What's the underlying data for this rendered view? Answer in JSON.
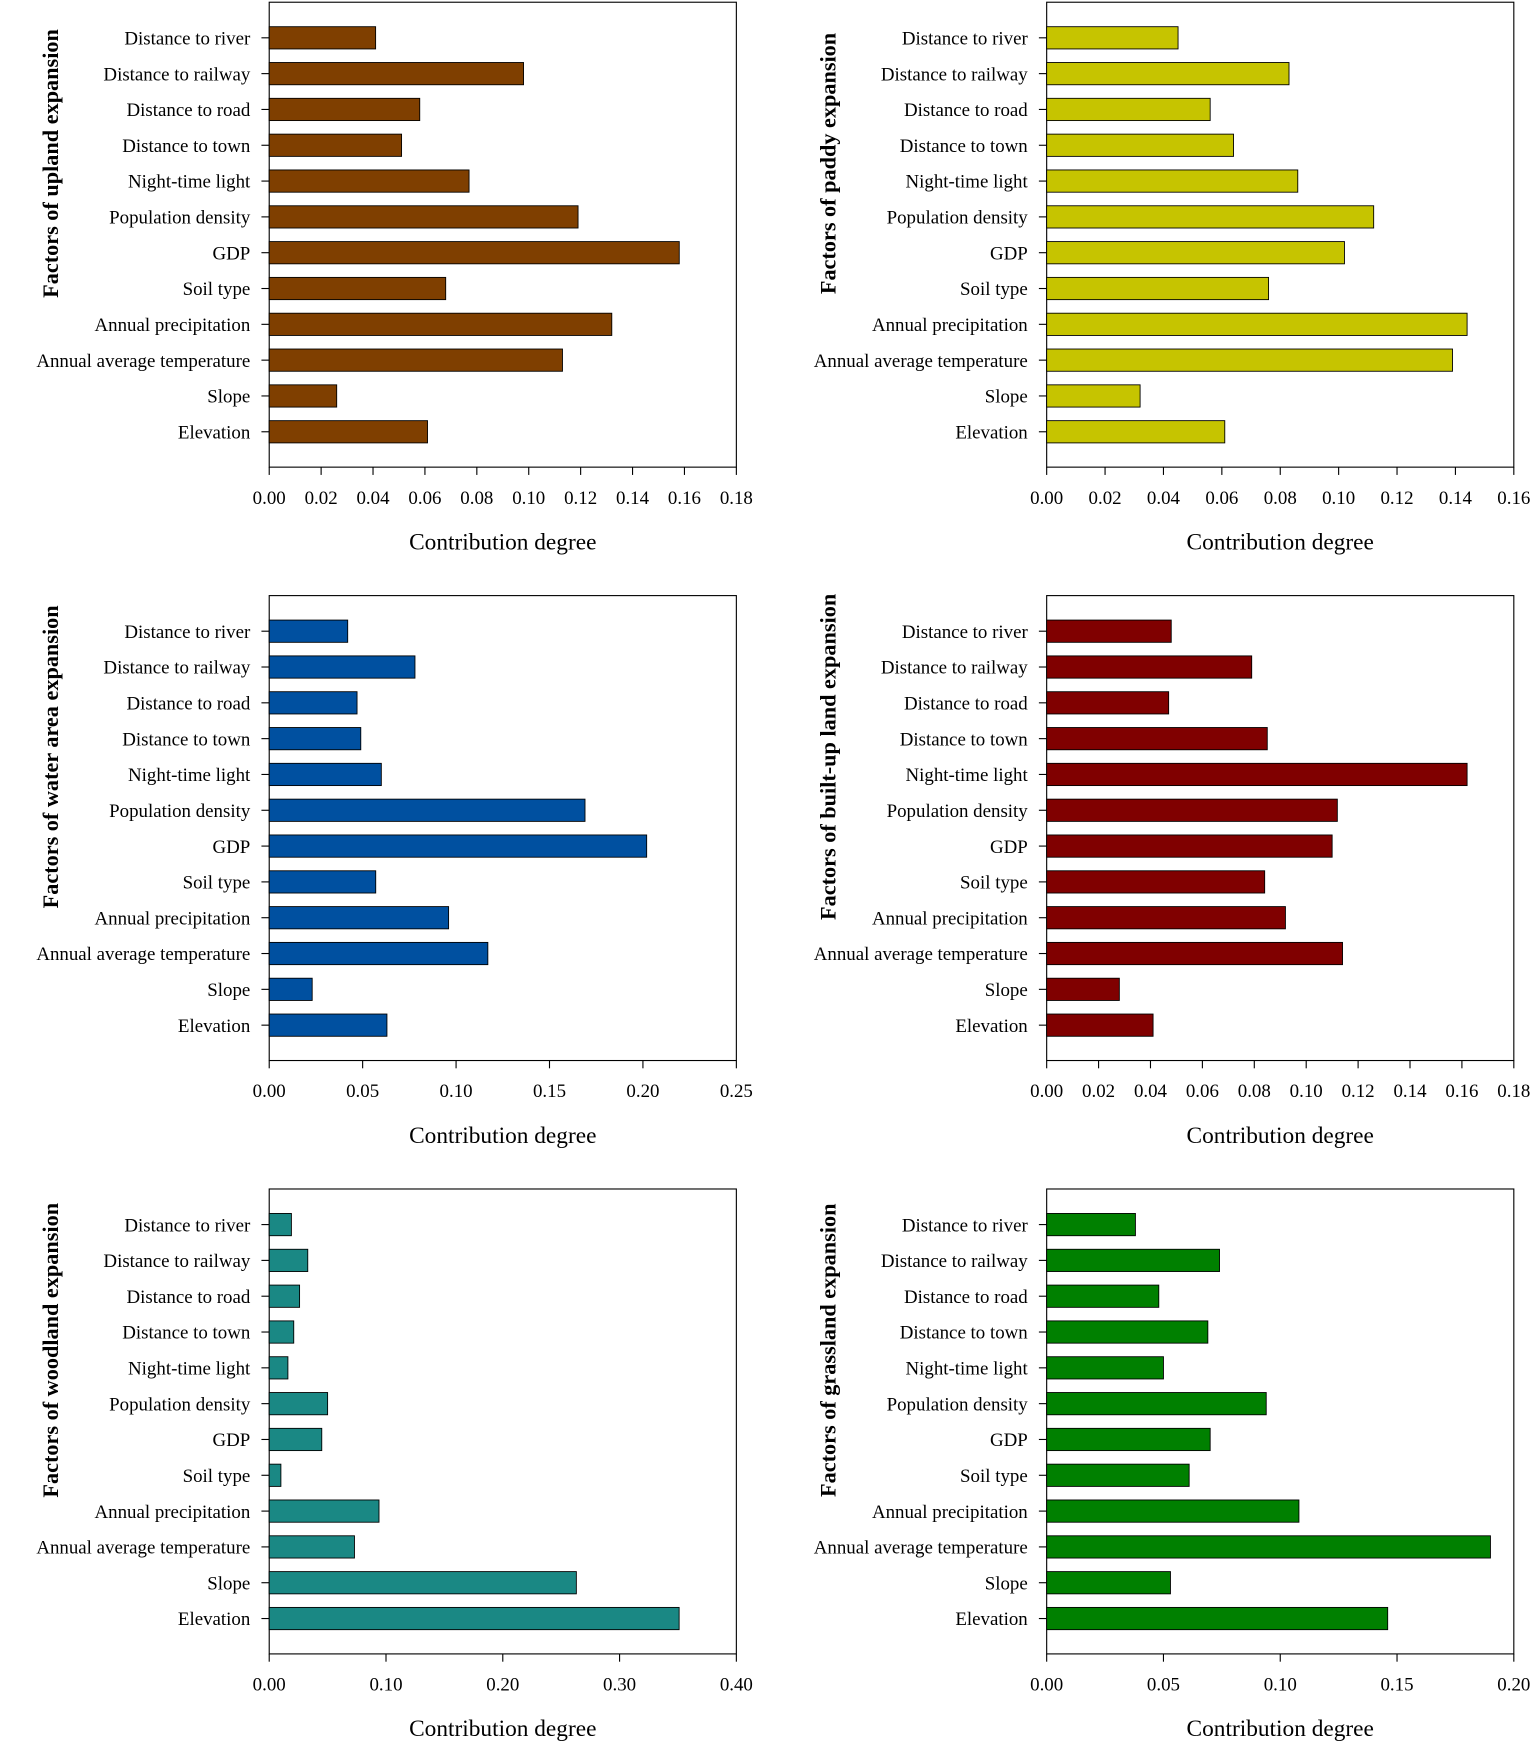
{
  "chart_data": [
    {
      "type": "bar",
      "orientation": "horizontal",
      "ylabel": "Factors of upland expansion",
      "xlabel": "Contribution degree",
      "color": "#7f3f00",
      "categories": [
        "Distance to river",
        "Distance to railway",
        "Distance to road",
        "Distance to town",
        "Night-time light",
        "Population density",
        "GDP",
        "Soil type",
        "Annual precipitation",
        "Annual average temperature",
        "Slope",
        "Elevation"
      ],
      "values": [
        0.041,
        0.098,
        0.058,
        0.051,
        0.077,
        0.119,
        0.158,
        0.068,
        0.132,
        0.113,
        0.026,
        0.061
      ],
      "xlim": [
        0,
        0.18
      ],
      "xticks": [
        "0.00",
        "0.02",
        "0.04",
        "0.06",
        "0.08",
        "0.10",
        "0.12",
        "0.14",
        "0.16",
        "0.18"
      ]
    },
    {
      "type": "bar",
      "orientation": "horizontal",
      "ylabel": "Factors of paddy expansion",
      "xlabel": "Contribution degree",
      "color": "#c6c400",
      "categories": [
        "Distance to river",
        "Distance to railway",
        "Distance to road",
        "Distance to town",
        "Night-time light",
        "Population density",
        "GDP",
        "Soil type",
        "Annual precipitation",
        "Annual average temperature",
        "Slope",
        "Elevation"
      ],
      "values": [
        0.045,
        0.083,
        0.056,
        0.064,
        0.086,
        0.112,
        0.102,
        0.076,
        0.144,
        0.139,
        0.032,
        0.061
      ],
      "xlim": [
        0,
        0.16
      ],
      "xticks": [
        "0.00",
        "0.02",
        "0.04",
        "0.06",
        "0.08",
        "0.10",
        "0.12",
        "0.14",
        "0.16"
      ]
    },
    {
      "type": "bar",
      "orientation": "horizontal",
      "ylabel": "Factors of water area expansion",
      "xlabel": "Contribution degree",
      "color": "#0050a0",
      "categories": [
        "Distance to river",
        "Distance to railway",
        "Distance to road",
        "Distance to town",
        "Night-time light",
        "Population density",
        "GDP",
        "Soil type",
        "Annual precipitation",
        "Annual average temperature",
        "Slope",
        "Elevation"
      ],
      "values": [
        0.042,
        0.078,
        0.047,
        0.049,
        0.06,
        0.169,
        0.202,
        0.057,
        0.096,
        0.117,
        0.023,
        0.063
      ],
      "xlim": [
        0,
        0.25
      ],
      "xticks": [
        "0.00",
        "0.05",
        "0.10",
        "0.15",
        "0.20",
        "0.25"
      ]
    },
    {
      "type": "bar",
      "orientation": "horizontal",
      "ylabel": "Factors of built-up land expansion",
      "xlabel": "Contribution degree",
      "color": "#800000",
      "categories": [
        "Distance to river",
        "Distance to railway",
        "Distance to road",
        "Distance to town",
        "Night-time light",
        "Population density",
        "GDP",
        "Soil type",
        "Annual precipitation",
        "Annual average temperature",
        "Slope",
        "Elevation"
      ],
      "values": [
        0.048,
        0.079,
        0.047,
        0.085,
        0.162,
        0.112,
        0.11,
        0.084,
        0.092,
        0.114,
        0.028,
        0.041
      ],
      "xlim": [
        0,
        0.18
      ],
      "xticks": [
        "0.00",
        "0.02",
        "0.04",
        "0.06",
        "0.08",
        "0.10",
        "0.12",
        "0.14",
        "0.16",
        "0.18"
      ]
    },
    {
      "type": "bar",
      "orientation": "horizontal",
      "ylabel": "Factors of woodland expansion",
      "xlabel": "Contribution degree",
      "color": "#1a8884",
      "categories": [
        "Distance to river",
        "Distance to railway",
        "Distance to road",
        "Distance to town",
        "Night-time light",
        "Population density",
        "GDP",
        "Soil type",
        "Annual precipitation",
        "Annual average temperature",
        "Slope",
        "Elevation"
      ],
      "values": [
        0.019,
        0.033,
        0.026,
        0.021,
        0.016,
        0.05,
        0.045,
        0.01,
        0.094,
        0.073,
        0.263,
        0.351
      ],
      "xlim": [
        0,
        0.4
      ],
      "xticks": [
        "0.00",
        "0.10",
        "0.20",
        "0.30",
        "0.40"
      ]
    },
    {
      "type": "bar",
      "orientation": "horizontal",
      "ylabel": "Factors of grassland expansion",
      "xlabel": "Contribution degree",
      "color": "#008000",
      "categories": [
        "Distance to river",
        "Distance to railway",
        "Distance to road",
        "Distance to town",
        "Night-time light",
        "Population density",
        "GDP",
        "Soil type",
        "Annual precipitation",
        "Annual average temperature",
        "Slope",
        "Elevation"
      ],
      "values": [
        0.038,
        0.074,
        0.048,
        0.069,
        0.05,
        0.094,
        0.07,
        0.061,
        0.108,
        0.19,
        0.053,
        0.146
      ],
      "xlim": [
        0,
        0.2
      ],
      "xticks": [
        "0.00",
        "0.05",
        "0.10",
        "0.15",
        "0.20"
      ]
    }
  ]
}
